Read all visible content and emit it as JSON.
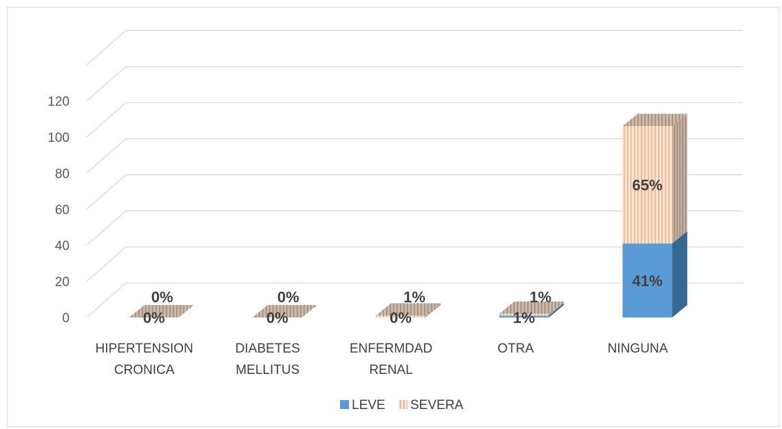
{
  "chart_data": {
    "type": "bar",
    "stacked": true,
    "three_d": true,
    "categories": [
      [
        "HIPERTENSION",
        "CRONICA"
      ],
      [
        "DIABETES",
        "MELLITUS"
      ],
      [
        "ENFERMDAD",
        "RENAL"
      ],
      [
        "OTRA"
      ],
      [
        "NINGUNA"
      ]
    ],
    "series": [
      {
        "name": "LEVE",
        "color": "#5b9bd5",
        "side_color": "#3a6a94",
        "top_color": "#4f8ac0",
        "values": [
          0,
          0,
          0,
          1,
          41
        ],
        "labels": [
          "0%",
          "0%",
          "0%",
          "1%",
          "41%"
        ]
      },
      {
        "name": "SEVERA",
        "color": "#fbe5d6",
        "stripe_color": "#f4b183",
        "side_color": "#b3a091",
        "top_color": "#c9b5a6",
        "values": [
          0,
          0,
          1,
          1,
          65
        ],
        "labels": [
          "0%",
          "0%",
          "1%",
          "1%",
          "65%"
        ]
      }
    ],
    "y_ticks": [
      "0",
      "20",
      "40",
      "60",
      "80",
      "100",
      "120"
    ],
    "ylim": [
      0,
      120
    ],
    "grid": true,
    "legend_position": "bottom"
  }
}
